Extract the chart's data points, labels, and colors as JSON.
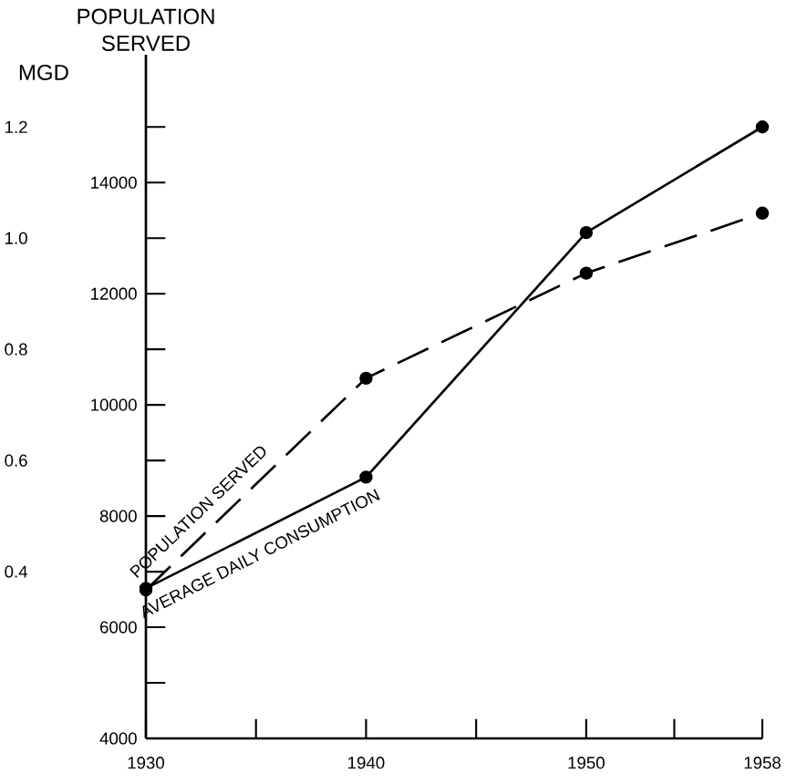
{
  "chart_data": {
    "type": "line",
    "ylabel": "POPULATION SERVED",
    "y2label": "MGD",
    "x": [
      1930,
      1940,
      1950,
      1958
    ],
    "xlim": [
      1930,
      1958
    ],
    "xticks": [
      1930,
      {
        "value": 1935,
        "label": null
      },
      1940,
      {
        "value": 1945,
        "label": null
      },
      1950,
      {
        "value": 1954,
        "label": null
      },
      1958
    ],
    "ylim": [
      4000,
      16300
    ],
    "yticks": [
      4000,
      {
        "value": 5000,
        "label": null
      },
      6000,
      {
        "value": 7000,
        "label": null
      },
      8000,
      {
        "value": 9000,
        "label": null
      },
      10000,
      {
        "value": 11000,
        "label": null
      },
      12000,
      {
        "value": 13000,
        "label": null
      },
      14000,
      {
        "value": 15000,
        "label": null
      }
    ],
    "y2lim": [
      0.1,
      1.33
    ],
    "y2ticks": [
      0.4,
      0.6,
      0.8,
      {
        "value": 1.0,
        "label": "1.0"
      },
      1.2
    ],
    "marker": "circle",
    "series": [
      {
        "name": "POPULATION SERVED",
        "color": "#000000",
        "line_style": "dashed",
        "values": [
          6670,
          10480,
          12370,
          13450
        ]
      },
      {
        "name": "AVERAGE DAILY CONSUMPTION",
        "color": "#000000",
        "line_style": "solid",
        "axis": "y2",
        "values": [
          0.37,
          0.57,
          1.01,
          1.2
        ]
      }
    ]
  }
}
